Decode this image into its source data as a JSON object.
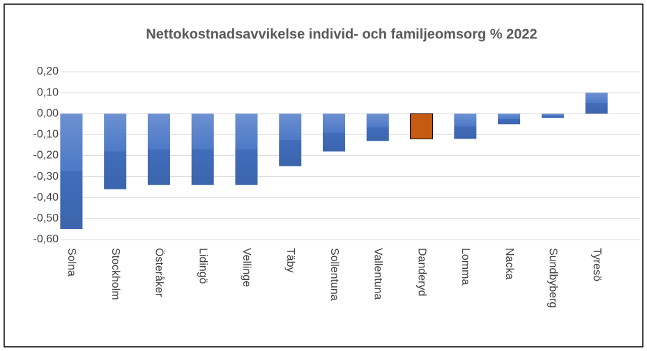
{
  "chart_data": {
    "type": "bar",
    "title": "Nettokostnadsavvikelse individ- och familjeomsorg % 2022",
    "categories": [
      "Solna",
      "Stockholm",
      "Österåker",
      "Lidingö",
      "Vellinge",
      "Täby",
      "Sollentuna",
      "Vallentuna",
      "Danderyd",
      "Lomma",
      "Nacka",
      "Sundbyberg",
      "Tyresö"
    ],
    "values": [
      -0.55,
      -0.36,
      -0.34,
      -0.34,
      -0.34,
      -0.25,
      -0.18,
      -0.13,
      -0.12,
      -0.12,
      -0.05,
      -0.02,
      0.1
    ],
    "colors": [
      "#4472c4",
      "#4472c4",
      "#4472c4",
      "#4472c4",
      "#4472c4",
      "#4472c4",
      "#4472c4",
      "#4472c4",
      "#c55a11",
      "#4472c4",
      "#4472c4",
      "#4472c4",
      "#4472c4"
    ],
    "ylim": [
      -0.6,
      0.2
    ],
    "yticks": [
      {
        "value": 0.2,
        "label": "0,20"
      },
      {
        "value": 0.1,
        "label": "0,10"
      },
      {
        "value": 0,
        "label": "0,00"
      },
      {
        "value": -0.1,
        "label": "-0,10"
      },
      {
        "value": -0.2,
        "label": "-0,20"
      },
      {
        "value": -0.3,
        "label": "-0,30"
      },
      {
        "value": -0.4,
        "label": "-0,40"
      },
      {
        "value": -0.5,
        "label": "-0,50"
      },
      {
        "value": -0.6,
        "label": "-0,60"
      }
    ],
    "grid": true
  }
}
